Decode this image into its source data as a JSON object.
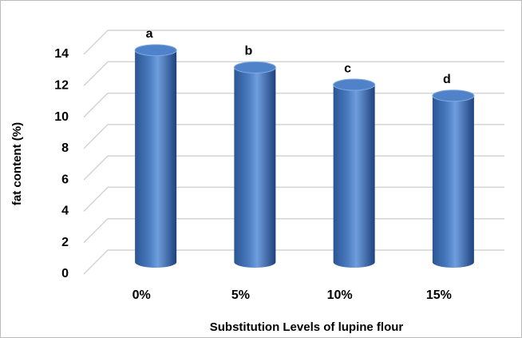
{
  "chart_data": {
    "type": "bar",
    "categories": [
      "0%",
      "5%",
      "10%",
      "15%"
    ],
    "values": [
      13.5,
      12.4,
      11.3,
      10.6
    ],
    "bar_labels": [
      "a",
      "b",
      "c",
      "d"
    ],
    "color": "#4a7cc0",
    "xlabel": "Substitution Levels of lupine flour",
    "ylabel": "fat content (%)",
    "ylim": [
      0,
      14
    ],
    "yticks": [
      0,
      2,
      4,
      6,
      8,
      10,
      12,
      14
    ],
    "grid": true
  }
}
